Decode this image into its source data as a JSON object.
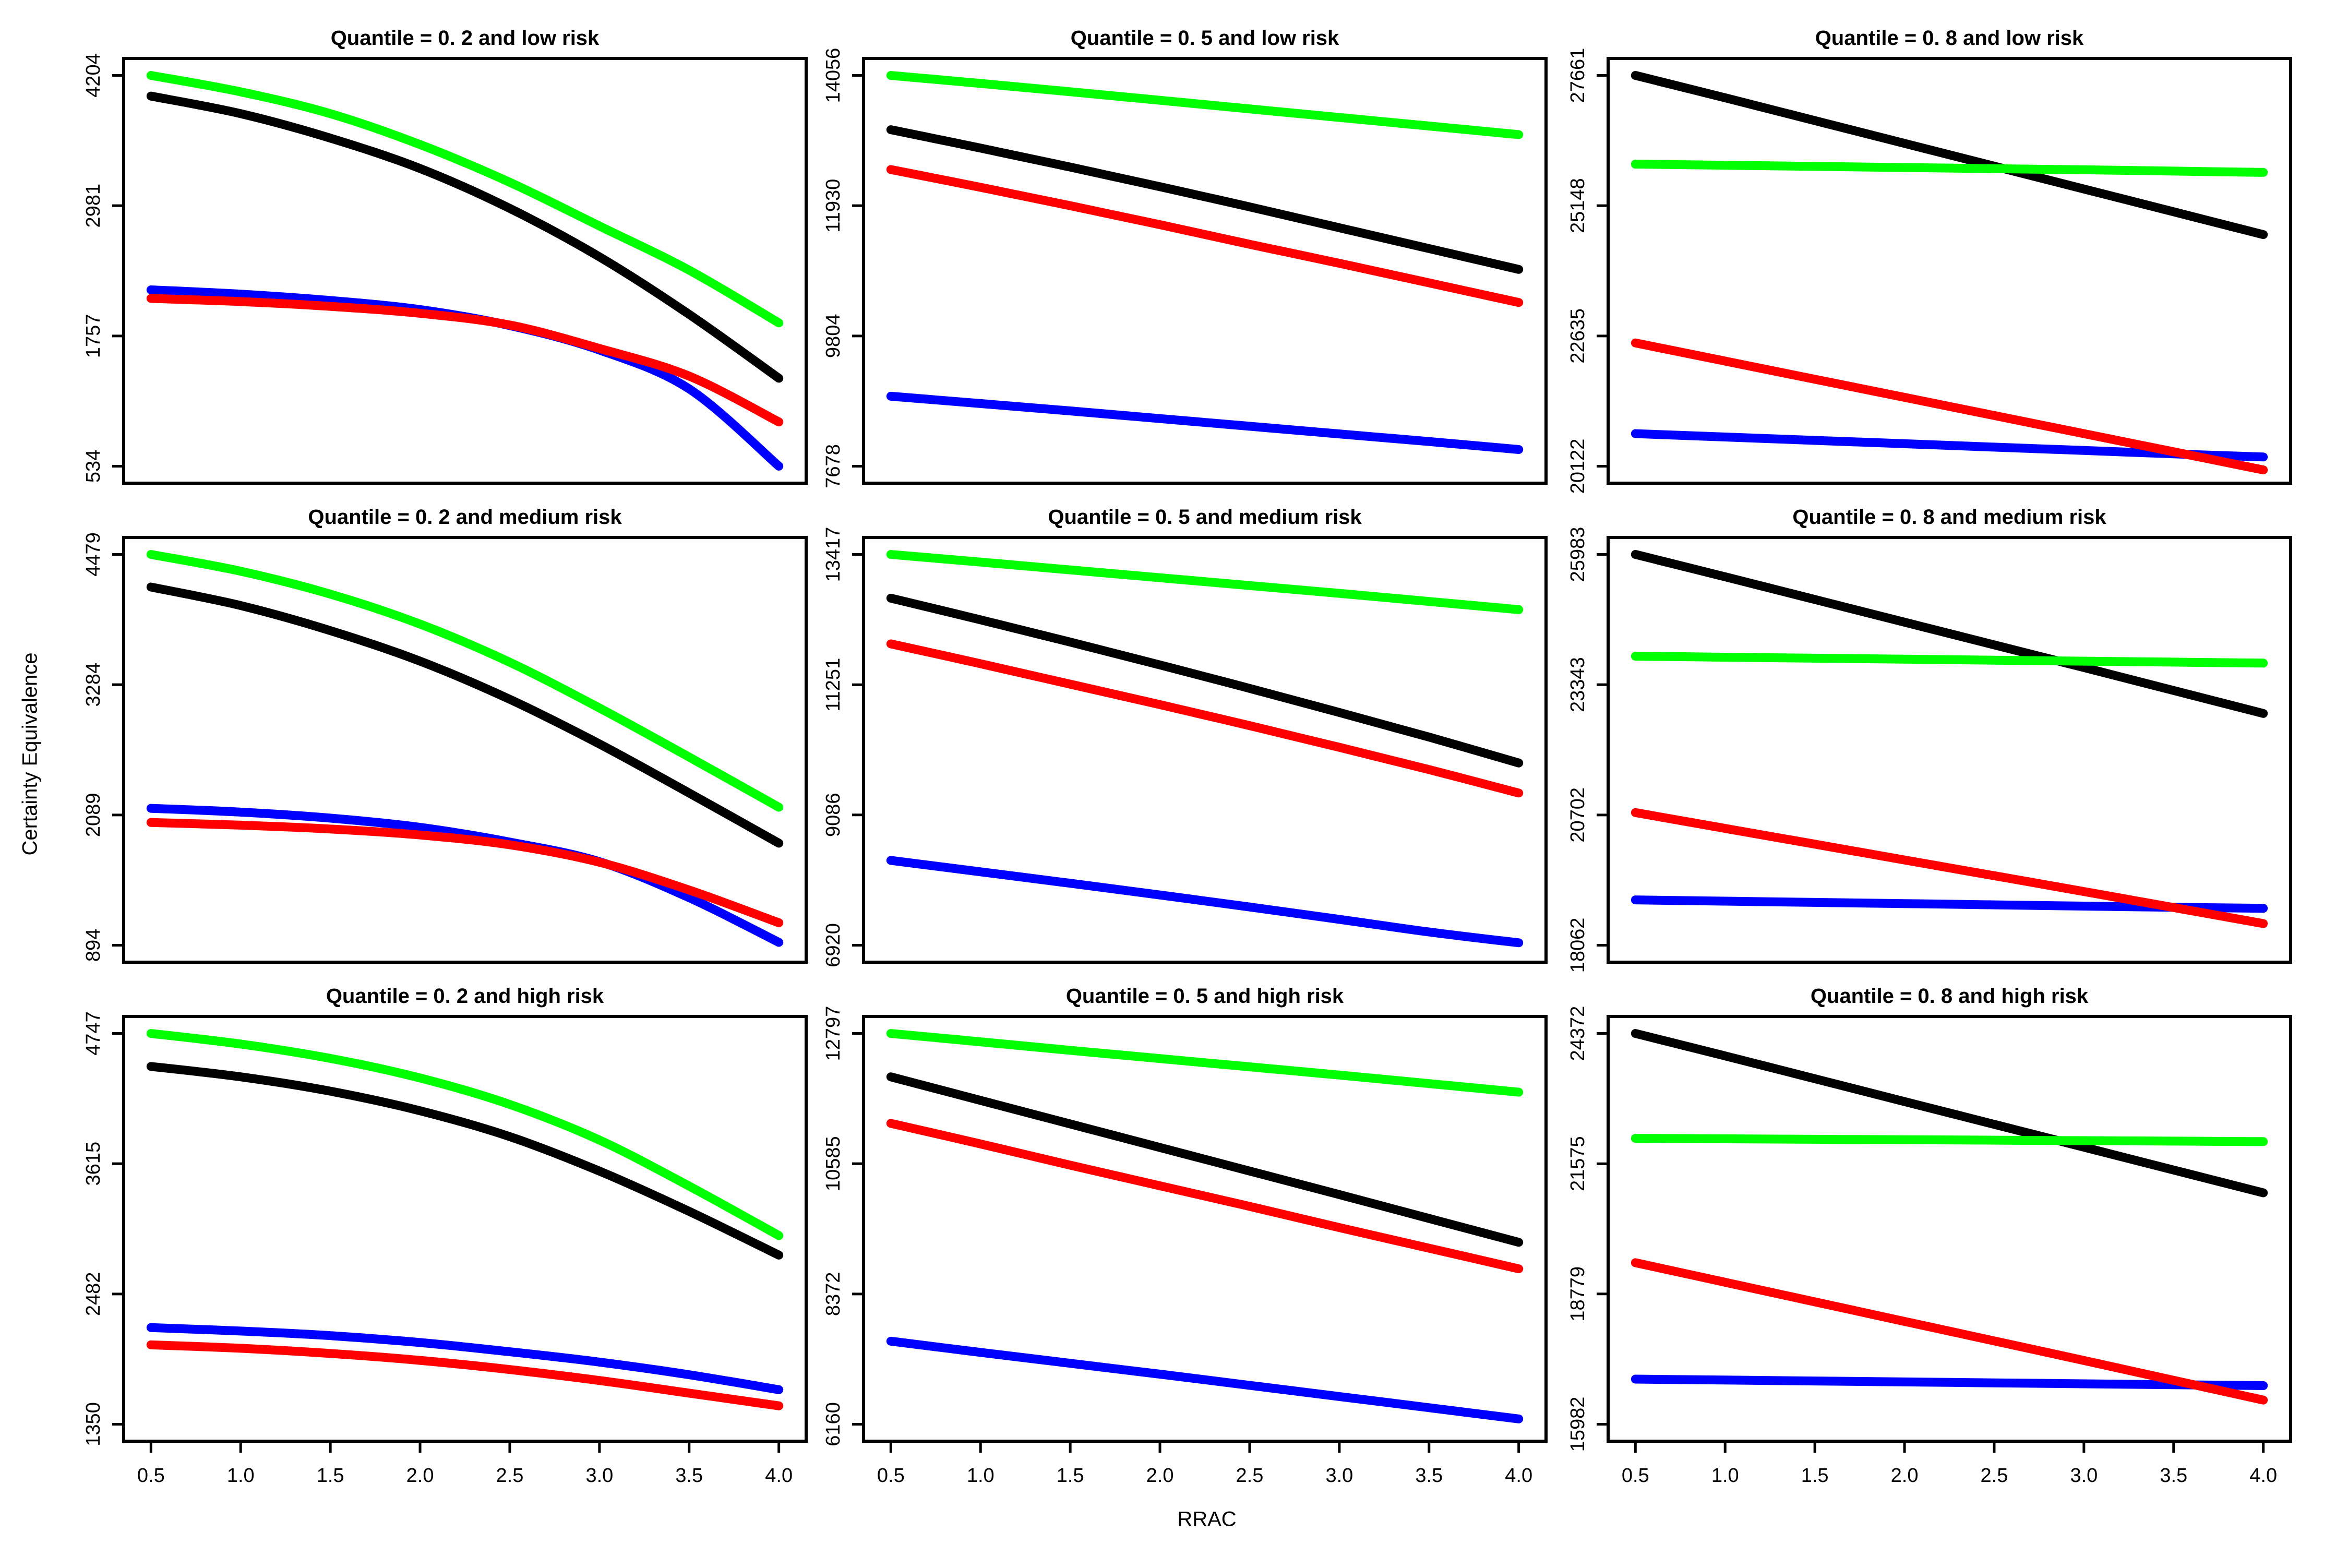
{
  "figure": {
    "xlabel": "RRAC",
    "ylabel": "Certainty Equivalence",
    "background": "#FFFFFF",
    "x_tick_labels": [
      "0.5",
      "1.0",
      "1.5",
      "2.0",
      "2.5",
      "3.0",
      "3.5",
      "4.0"
    ],
    "series_colors": {
      "black": "#000000",
      "green": "#00FF00",
      "blue": "#0000FF",
      "red": "#FF0000"
    }
  },
  "chart_data": [
    {
      "type": "line",
      "title": "Quantile = 0. 2 and low risk",
      "row": 0,
      "col": 0,
      "xlim": [
        0.5,
        4.0
      ],
      "ylim": [
        534,
        4204
      ],
      "y_tick_labels": [
        "534",
        "1757",
        "2981",
        "4204"
      ],
      "y_tick_values": [
        534,
        1757,
        2981,
        4204
      ],
      "x": [
        0.5,
        1.0,
        1.5,
        2.0,
        2.5,
        3.0,
        3.5,
        4.0
      ],
      "series": [
        {
          "name": "black",
          "color": "#000000",
          "values": [
            4010,
            3845,
            3615,
            3330,
            2955,
            2500,
            1960,
            1360
          ]
        },
        {
          "name": "green",
          "color": "#00FF00",
          "values": [
            4204,
            4050,
            3845,
            3555,
            3200,
            2790,
            2375,
            1880
          ]
        },
        {
          "name": "blue",
          "color": "#0000FF",
          "values": [
            2190,
            2150,
            2090,
            2005,
            1855,
            1625,
            1260,
            534
          ]
        },
        {
          "name": "red",
          "color": "#FF0000",
          "values": [
            2110,
            2080,
            2035,
            1970,
            1860,
            1640,
            1380,
            950
          ]
        }
      ]
    },
    {
      "type": "line",
      "title": "Quantile = 0. 5 and low risk",
      "row": 0,
      "col": 1,
      "xlim": [
        0.5,
        4.0
      ],
      "ylim": [
        7678,
        14056
      ],
      "y_tick_labels": [
        "7678",
        "9804",
        "11930",
        "14056"
      ],
      "y_tick_values": [
        7678,
        9804,
        11930,
        14056
      ],
      "x": [
        0.5,
        1.0,
        1.5,
        2.0,
        2.5,
        3.0,
        3.5,
        4.0
      ],
      "series": [
        {
          "name": "black",
          "color": "#000000",
          "values": [
            13170,
            12870,
            12560,
            12240,
            11910,
            11570,
            11230,
            10890
          ]
        },
        {
          "name": "green",
          "color": "#00FF00",
          "values": [
            14056,
            13925,
            13790,
            13650,
            13510,
            13370,
            13230,
            13090
          ]
        },
        {
          "name": "blue",
          "color": "#0000FF",
          "values": [
            8820,
            8700,
            8580,
            8455,
            8330,
            8205,
            8080,
            7950
          ]
        },
        {
          "name": "red",
          "color": "#FF0000",
          "values": [
            12520,
            12230,
            11930,
            11620,
            11300,
            10990,
            10670,
            10350
          ]
        }
      ]
    },
    {
      "type": "line",
      "title": "Quantile = 0. 8 and low risk",
      "row": 0,
      "col": 2,
      "xlim": [
        0.5,
        4.0
      ],
      "ylim": [
        20122,
        27661
      ],
      "y_tick_labels": [
        "20122",
        "22635",
        "25148",
        "27661"
      ],
      "y_tick_values": [
        20122,
        22635,
        25148,
        27661
      ],
      "x": [
        0.5,
        1.0,
        1.5,
        2.0,
        2.5,
        3.0,
        3.5,
        4.0
      ],
      "series": [
        {
          "name": "black",
          "color": "#000000",
          "values": [
            27661,
            27230,
            26790,
            26350,
            25910,
            25470,
            25030,
            24590
          ]
        },
        {
          "name": "green",
          "color": "#00FF00",
          "values": [
            25950,
            25928,
            25906,
            25884,
            25862,
            25840,
            25815,
            25790
          ]
        },
        {
          "name": "blue",
          "color": "#0000FF",
          "values": [
            20750,
            20685,
            20620,
            20555,
            20490,
            20425,
            20360,
            20300
          ]
        },
        {
          "name": "red",
          "color": "#FF0000",
          "values": [
            22500,
            22150,
            21800,
            21450,
            21100,
            20750,
            20400,
            20050
          ]
        }
      ]
    },
    {
      "type": "line",
      "title": "Quantile = 0. 2 and medium risk",
      "row": 1,
      "col": 0,
      "xlim": [
        0.5,
        4.0
      ],
      "ylim": [
        894,
        4479
      ],
      "y_tick_labels": [
        "894",
        "2089",
        "3284",
        "4479"
      ],
      "y_tick_values": [
        894,
        2089,
        3284,
        4479
      ],
      "x": [
        0.5,
        1.0,
        1.5,
        2.0,
        2.5,
        3.0,
        3.5,
        4.0
      ],
      "series": [
        {
          "name": "black",
          "color": "#000000",
          "values": [
            4180,
            4010,
            3780,
            3500,
            3150,
            2740,
            2290,
            1830
          ]
        },
        {
          "name": "green",
          "color": "#00FF00",
          "values": [
            4479,
            4325,
            4115,
            3840,
            3490,
            3070,
            2620,
            2160
          ]
        },
        {
          "name": "blue",
          "color": "#0000FF",
          "values": [
            2150,
            2115,
            2060,
            1975,
            1840,
            1660,
            1330,
            920
          ]
        },
        {
          "name": "red",
          "color": "#FF0000",
          "values": [
            2020,
            1995,
            1960,
            1905,
            1815,
            1655,
            1400,
            1100
          ]
        }
      ]
    },
    {
      "type": "line",
      "title": "Quantile = 0. 5 and medium risk",
      "row": 1,
      "col": 1,
      "xlim": [
        0.5,
        4.0
      ],
      "ylim": [
        6920,
        13417
      ],
      "y_tick_labels": [
        "6920",
        "9086",
        "11251",
        "13417"
      ],
      "y_tick_values": [
        6920,
        9086,
        11251,
        13417
      ],
      "x": [
        0.5,
        1.0,
        1.5,
        2.0,
        2.5,
        3.0,
        3.5,
        4.0
      ],
      "series": [
        {
          "name": "black",
          "color": "#000000",
          "values": [
            12690,
            12330,
            11960,
            11580,
            11190,
            10790,
            10380,
            9950
          ]
        },
        {
          "name": "green",
          "color": "#00FF00",
          "values": [
            13417,
            13290,
            13160,
            13030,
            12900,
            12770,
            12635,
            12500
          ]
        },
        {
          "name": "blue",
          "color": "#0000FF",
          "values": [
            8330,
            8140,
            7950,
            7755,
            7555,
            7350,
            7140,
            6960
          ]
        },
        {
          "name": "red",
          "color": "#FF0000",
          "values": [
            11930,
            11600,
            11260,
            10920,
            10570,
            10210,
            9840,
            9450
          ]
        }
      ]
    },
    {
      "type": "line",
      "title": "Quantile = 0. 8 and medium risk",
      "row": 1,
      "col": 2,
      "xlim": [
        0.5,
        4.0
      ],
      "ylim": [
        18062,
        25983
      ],
      "y_tick_labels": [
        "18062",
        "20702",
        "23343",
        "25983"
      ],
      "y_tick_values": [
        18062,
        20702,
        23343,
        25983
      ],
      "x": [
        0.5,
        1.0,
        1.5,
        2.0,
        2.5,
        3.0,
        3.5,
        4.0
      ],
      "series": [
        {
          "name": "black",
          "color": "#000000",
          "values": [
            25983,
            25530,
            25070,
            24610,
            24150,
            23690,
            23225,
            22760
          ]
        },
        {
          "name": "green",
          "color": "#00FF00",
          "values": [
            23920,
            23900,
            23880,
            23860,
            23840,
            23820,
            23800,
            23780
          ]
        },
        {
          "name": "blue",
          "color": "#0000FF",
          "values": [
            18980,
            18955,
            18930,
            18905,
            18880,
            18855,
            18830,
            18810
          ]
        },
        {
          "name": "red",
          "color": "#FF0000",
          "values": [
            20750,
            20430,
            20110,
            19790,
            19470,
            19150,
            18825,
            18500
          ]
        }
      ]
    },
    {
      "type": "line",
      "title": "Quantile = 0. 2 and high risk",
      "row": 2,
      "col": 0,
      "xlim": [
        0.5,
        4.0
      ],
      "ylim": [
        1350,
        4747
      ],
      "y_tick_labels": [
        "1350",
        "2482",
        "3615",
        "4747"
      ],
      "y_tick_values": [
        1350,
        2482,
        3615,
        4747
      ],
      "x": [
        0.5,
        1.0,
        1.5,
        2.0,
        2.5,
        3.0,
        3.5,
        4.0
      ],
      "series": [
        {
          "name": "black",
          "color": "#000000",
          "values": [
            4460,
            4370,
            4245,
            4075,
            3850,
            3550,
            3200,
            2820
          ]
        },
        {
          "name": "green",
          "color": "#00FF00",
          "values": [
            4747,
            4655,
            4530,
            4360,
            4130,
            3820,
            3420,
            2990
          ]
        },
        {
          "name": "blue",
          "color": "#0000FF",
          "values": [
            2190,
            2160,
            2120,
            2060,
            1980,
            1890,
            1780,
            1650
          ]
        },
        {
          "name": "red",
          "color": "#FF0000",
          "values": [
            2040,
            2010,
            1965,
            1905,
            1825,
            1730,
            1620,
            1510
          ]
        }
      ]
    },
    {
      "type": "line",
      "title": "Quantile = 0. 5 and high risk",
      "row": 2,
      "col": 1,
      "xlim": [
        0.5,
        4.0
      ],
      "ylim": [
        6160,
        12797
      ],
      "y_tick_labels": [
        "6160",
        "8372",
        "10585",
        "12797"
      ],
      "y_tick_values": [
        6160,
        8372,
        10585,
        12797
      ],
      "x": [
        0.5,
        1.0,
        1.5,
        2.0,
        2.5,
        3.0,
        3.5,
        4.0
      ],
      "series": [
        {
          "name": "black",
          "color": "#000000",
          "values": [
            12060,
            11660,
            11260,
            10860,
            10460,
            10060,
            9655,
            9250
          ]
        },
        {
          "name": "green",
          "color": "#00FF00",
          "values": [
            12797,
            12655,
            12510,
            12370,
            12230,
            12090,
            11945,
            11800
          ]
        },
        {
          "name": "blue",
          "color": "#0000FF",
          "values": [
            7570,
            7380,
            7195,
            7010,
            6820,
            6630,
            6440,
            6250
          ]
        },
        {
          "name": "red",
          "color": "#FF0000",
          "values": [
            11270,
            10920,
            10560,
            10210,
            9860,
            9500,
            9150,
            8800
          ]
        }
      ]
    },
    {
      "type": "line",
      "title": "Quantile = 0. 8 and high risk",
      "row": 2,
      "col": 2,
      "xlim": [
        0.5,
        4.0
      ],
      "ylim": [
        15982,
        24372
      ],
      "y_tick_labels": [
        "15982",
        "18779",
        "21575",
        "24372"
      ],
      "y_tick_values": [
        15982,
        18779,
        21575,
        24372
      ],
      "x": [
        0.5,
        1.0,
        1.5,
        2.0,
        2.5,
        3.0,
        3.5,
        4.0
      ],
      "series": [
        {
          "name": "black",
          "color": "#000000",
          "values": [
            24372,
            23890,
            23400,
            22910,
            22420,
            21930,
            21440,
            20950
          ]
        },
        {
          "name": "green",
          "color": "#00FF00",
          "values": [
            22120,
            22110,
            22100,
            22090,
            22080,
            22070,
            22060,
            22050
          ]
        },
        {
          "name": "blue",
          "color": "#0000FF",
          "values": [
            16950,
            16930,
            16910,
            16890,
            16870,
            16850,
            16830,
            16810
          ]
        },
        {
          "name": "red",
          "color": "#FF0000",
          "values": [
            19450,
            19030,
            18610,
            18190,
            17770,
            17350,
            16925,
            16500
          ]
        }
      ]
    }
  ]
}
